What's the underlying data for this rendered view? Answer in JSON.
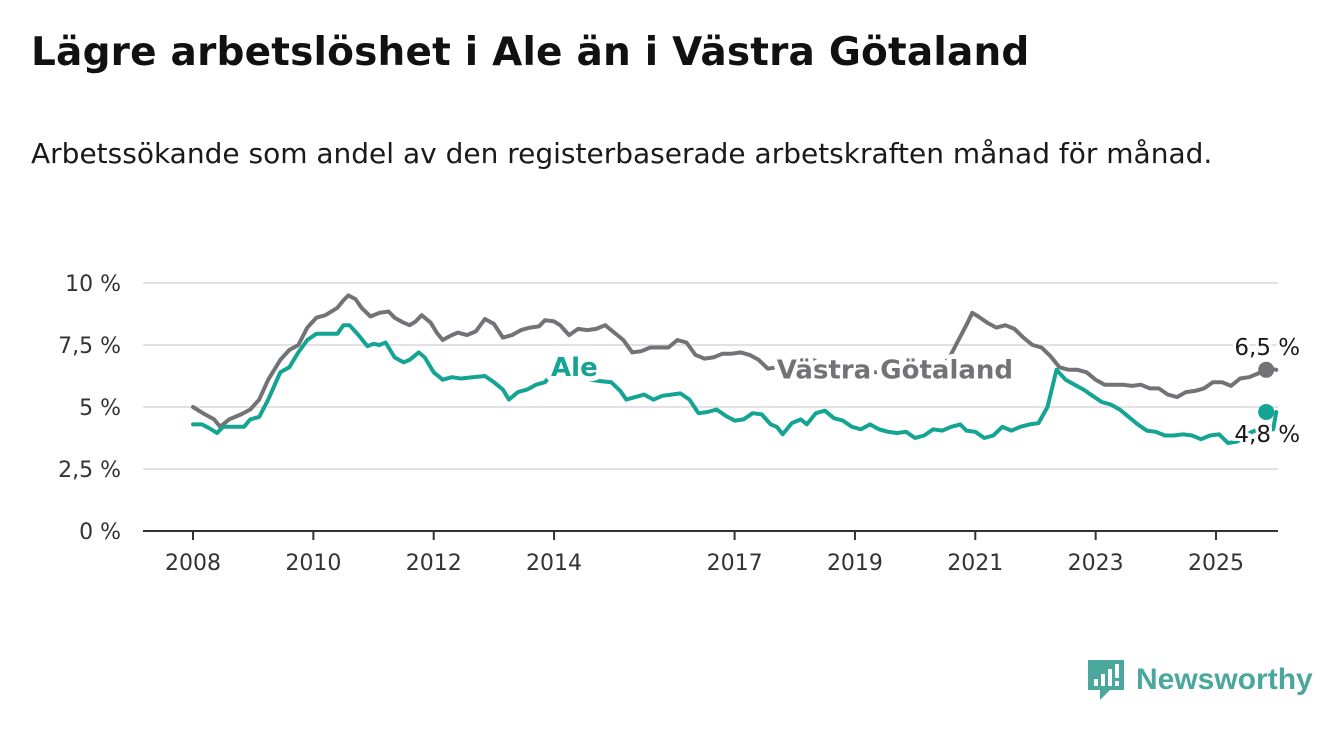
{
  "title": "Lägre arbetslöshet i Ale än i Västra Götaland",
  "subtitle": "Arbetssökande som andel av den registerbaserade arbetskraften månad för månad.",
  "brand": {
    "name": "Newsworthy",
    "icon": "newsworthy-logo-icon",
    "color": "#4aa79e"
  },
  "chart_data": {
    "type": "line",
    "title": "Lägre arbetslöshet i Ale än i Västra Götaland",
    "subtitle": "Arbetssökande som andel av den registerbaserade arbetskraften månad för månad.",
    "xlabel": "",
    "ylabel": "",
    "ylim": [
      0,
      10
    ],
    "xlim": [
      2007.2,
      2026.0
    ],
    "grid": true,
    "legend": "inline",
    "y_ticks": [
      {
        "value": 0,
        "label": "0 %"
      },
      {
        "value": 2.5,
        "label": "2,5 %"
      },
      {
        "value": 5,
        "label": "5 %"
      },
      {
        "value": 7.5,
        "label": "7,5 %"
      },
      {
        "value": 10,
        "label": "10 %"
      }
    ],
    "x_ticks": [
      {
        "value": 2008,
        "label": "2008"
      },
      {
        "value": 2010,
        "label": "2010"
      },
      {
        "value": 2012,
        "label": "2012"
      },
      {
        "value": 2014,
        "label": "2014"
      },
      {
        "value": 2017,
        "label": "2017"
      },
      {
        "value": 2019,
        "label": "2019"
      },
      {
        "value": 2021,
        "label": "2021"
      },
      {
        "value": 2023,
        "label": "2023"
      },
      {
        "value": 2025,
        "label": "2025"
      }
    ],
    "series": [
      {
        "name": "Västra Götaland",
        "color": "#737277",
        "end_label": "6,5 %",
        "points": [
          [
            2008.0,
            5.0
          ],
          [
            2008.2,
            4.7
          ],
          [
            2008.35,
            4.5
          ],
          [
            2008.45,
            4.2
          ],
          [
            2008.6,
            4.5
          ],
          [
            2008.8,
            4.7
          ],
          [
            2008.95,
            4.9
          ],
          [
            2009.1,
            5.3
          ],
          [
            2009.25,
            6.1
          ],
          [
            2009.45,
            6.9
          ],
          [
            2009.6,
            7.3
          ],
          [
            2009.75,
            7.5
          ],
          [
            2009.9,
            8.2
          ],
          [
            2010.05,
            8.6
          ],
          [
            2010.2,
            8.7
          ],
          [
            2010.4,
            9.0
          ],
          [
            2010.5,
            9.3
          ],
          [
            2010.58,
            9.5
          ],
          [
            2010.7,
            9.35
          ],
          [
            2010.8,
            9.0
          ],
          [
            2010.95,
            8.65
          ],
          [
            2011.1,
            8.8
          ],
          [
            2011.25,
            8.85
          ],
          [
            2011.35,
            8.6
          ],
          [
            2011.5,
            8.4
          ],
          [
            2011.6,
            8.3
          ],
          [
            2011.7,
            8.45
          ],
          [
            2011.8,
            8.7
          ],
          [
            2011.95,
            8.4
          ],
          [
            2012.05,
            8.0
          ],
          [
            2012.15,
            7.7
          ],
          [
            2012.3,
            7.9
          ],
          [
            2012.4,
            8.0
          ],
          [
            2012.55,
            7.9
          ],
          [
            2012.7,
            8.05
          ],
          [
            2012.85,
            8.55
          ],
          [
            2013.0,
            8.35
          ],
          [
            2013.15,
            7.8
          ],
          [
            2013.3,
            7.9
          ],
          [
            2013.45,
            8.1
          ],
          [
            2013.6,
            8.2
          ],
          [
            2013.75,
            8.25
          ],
          [
            2013.85,
            8.5
          ],
          [
            2014.0,
            8.45
          ],
          [
            2014.1,
            8.3
          ],
          [
            2014.25,
            7.9
          ],
          [
            2014.4,
            8.15
          ],
          [
            2014.55,
            8.1
          ],
          [
            2014.7,
            8.15
          ],
          [
            2014.85,
            8.3
          ],
          [
            2015.0,
            8.0
          ],
          [
            2015.15,
            7.7
          ],
          [
            2015.3,
            7.2
          ],
          [
            2015.45,
            7.25
          ],
          [
            2015.6,
            7.4
          ],
          [
            2015.75,
            7.4
          ],
          [
            2015.9,
            7.4
          ],
          [
            2016.05,
            7.7
          ],
          [
            2016.2,
            7.6
          ],
          [
            2016.35,
            7.1
          ],
          [
            2016.5,
            6.95
          ],
          [
            2016.65,
            7.0
          ],
          [
            2016.8,
            7.15
          ],
          [
            2016.95,
            7.15
          ],
          [
            2017.1,
            7.2
          ],
          [
            2017.25,
            7.1
          ],
          [
            2017.4,
            6.9
          ],
          [
            2017.55,
            6.55
          ],
          [
            2017.7,
            6.6
          ],
          [
            2017.85,
            6.7
          ],
          [
            2018.0,
            6.75
          ],
          [
            2018.15,
            6.85
          ],
          [
            2018.3,
            6.9
          ],
          [
            2018.45,
            6.75
          ],
          [
            2018.6,
            6.6
          ],
          [
            2018.75,
            6.3
          ],
          [
            2018.9,
            6.3
          ],
          [
            2019.05,
            6.35
          ],
          [
            2019.2,
            6.4
          ],
          [
            2019.35,
            6.4
          ],
          [
            2019.5,
            6.45
          ],
          [
            2019.65,
            6.5
          ],
          [
            2019.8,
            6.55
          ],
          [
            2019.95,
            6.6
          ],
          [
            2020.1,
            6.6
          ],
          [
            2020.25,
            6.55
          ],
          [
            2020.4,
            6.7
          ],
          [
            2020.55,
            6.9
          ],
          [
            2020.7,
            7.6
          ],
          [
            2020.85,
            8.3
          ],
          [
            2020.95,
            8.8
          ],
          [
            2021.05,
            8.65
          ],
          [
            2021.2,
            8.4
          ],
          [
            2021.35,
            8.2
          ],
          [
            2021.5,
            8.3
          ],
          [
            2021.65,
            8.15
          ],
          [
            2021.8,
            7.8
          ],
          [
            2021.95,
            7.5
          ],
          [
            2022.1,
            7.4
          ],
          [
            2022.25,
            7.05
          ],
          [
            2022.4,
            6.6
          ],
          [
            2022.55,
            6.5
          ],
          [
            2022.7,
            6.5
          ],
          [
            2022.85,
            6.4
          ],
          [
            2023.0,
            6.1
          ],
          [
            2023.15,
            5.9
          ],
          [
            2023.3,
            5.9
          ],
          [
            2023.45,
            5.9
          ],
          [
            2023.6,
            5.85
          ],
          [
            2023.75,
            5.9
          ],
          [
            2023.9,
            5.75
          ],
          [
            2024.05,
            5.75
          ],
          [
            2024.2,
            5.5
          ],
          [
            2024.35,
            5.4
          ],
          [
            2024.5,
            5.6
          ],
          [
            2024.65,
            5.65
          ],
          [
            2024.8,
            5.75
          ],
          [
            2024.95,
            6.0
          ],
          [
            2025.1,
            6.0
          ],
          [
            2025.25,
            5.85
          ],
          [
            2025.4,
            6.15
          ],
          [
            2025.55,
            6.2
          ],
          [
            2025.7,
            6.35
          ],
          [
            2025.8,
            6.5
          ],
          [
            2025.9,
            6.55
          ],
          [
            2026.0,
            6.5
          ]
        ]
      },
      {
        "name": "Ale",
        "color": "#14a493",
        "end_label": "4,8 %",
        "points": [
          [
            2008.0,
            4.3
          ],
          [
            2008.15,
            4.3
          ],
          [
            2008.3,
            4.1
          ],
          [
            2008.4,
            3.95
          ],
          [
            2008.5,
            4.2
          ],
          [
            2008.7,
            4.2
          ],
          [
            2008.85,
            4.2
          ],
          [
            2008.95,
            4.5
          ],
          [
            2009.1,
            4.6
          ],
          [
            2009.25,
            5.3
          ],
          [
            2009.45,
            6.4
          ],
          [
            2009.6,
            6.6
          ],
          [
            2009.75,
            7.2
          ],
          [
            2009.9,
            7.7
          ],
          [
            2010.05,
            7.95
          ],
          [
            2010.25,
            7.95
          ],
          [
            2010.4,
            7.95
          ],
          [
            2010.5,
            8.3
          ],
          [
            2010.6,
            8.3
          ],
          [
            2010.75,
            7.9
          ],
          [
            2010.9,
            7.45
          ],
          [
            2011.0,
            7.55
          ],
          [
            2011.1,
            7.5
          ],
          [
            2011.2,
            7.6
          ],
          [
            2011.35,
            7.0
          ],
          [
            2011.5,
            6.8
          ],
          [
            2011.6,
            6.9
          ],
          [
            2011.75,
            7.2
          ],
          [
            2011.85,
            7.0
          ],
          [
            2012.0,
            6.4
          ],
          [
            2012.15,
            6.1
          ],
          [
            2012.3,
            6.2
          ],
          [
            2012.45,
            6.15
          ],
          [
            2012.65,
            6.2
          ],
          [
            2012.85,
            6.25
          ],
          [
            2013.0,
            6.0
          ],
          [
            2013.15,
            5.7
          ],
          [
            2013.25,
            5.3
          ],
          [
            2013.4,
            5.6
          ],
          [
            2013.55,
            5.7
          ],
          [
            2013.7,
            5.9
          ],
          [
            2013.85,
            6.0
          ],
          [
            2013.95,
            6.3
          ],
          [
            2014.1,
            6.3
          ],
          [
            2014.3,
            6.35
          ],
          [
            2014.45,
            6.4
          ],
          [
            2014.6,
            6.1
          ],
          [
            2014.75,
            6.05
          ],
          [
            2014.95,
            6.0
          ],
          [
            2015.1,
            5.65
          ],
          [
            2015.2,
            5.3
          ],
          [
            2015.35,
            5.4
          ],
          [
            2015.5,
            5.5
          ],
          [
            2015.65,
            5.3
          ],
          [
            2015.8,
            5.45
          ],
          [
            2015.95,
            5.5
          ],
          [
            2016.1,
            5.55
          ],
          [
            2016.25,
            5.3
          ],
          [
            2016.4,
            4.75
          ],
          [
            2016.55,
            4.8
          ],
          [
            2016.7,
            4.9
          ],
          [
            2016.85,
            4.65
          ],
          [
            2017.0,
            4.45
          ],
          [
            2017.15,
            4.5
          ],
          [
            2017.3,
            4.75
          ],
          [
            2017.45,
            4.7
          ],
          [
            2017.6,
            4.3
          ],
          [
            2017.7,
            4.2
          ],
          [
            2017.8,
            3.9
          ],
          [
            2017.95,
            4.35
          ],
          [
            2018.1,
            4.5
          ],
          [
            2018.2,
            4.3
          ],
          [
            2018.35,
            4.75
          ],
          [
            2018.5,
            4.85
          ],
          [
            2018.65,
            4.55
          ],
          [
            2018.8,
            4.45
          ],
          [
            2018.95,
            4.2
          ],
          [
            2019.1,
            4.1
          ],
          [
            2019.25,
            4.3
          ],
          [
            2019.4,
            4.1
          ],
          [
            2019.55,
            4.0
          ],
          [
            2019.7,
            3.95
          ],
          [
            2019.85,
            4.0
          ],
          [
            2020.0,
            3.75
          ],
          [
            2020.15,
            3.85
          ],
          [
            2020.3,
            4.1
          ],
          [
            2020.45,
            4.05
          ],
          [
            2020.6,
            4.2
          ],
          [
            2020.75,
            4.3
          ],
          [
            2020.85,
            4.05
          ],
          [
            2021.0,
            4.0
          ],
          [
            2021.15,
            3.75
          ],
          [
            2021.3,
            3.85
          ],
          [
            2021.45,
            4.2
          ],
          [
            2021.6,
            4.05
          ],
          [
            2021.75,
            4.2
          ],
          [
            2021.9,
            4.3
          ],
          [
            2022.05,
            4.35
          ],
          [
            2022.2,
            5.0
          ],
          [
            2022.35,
            6.5
          ],
          [
            2022.5,
            6.1
          ],
          [
            2022.65,
            5.9
          ],
          [
            2022.8,
            5.7
          ],
          [
            2022.95,
            5.45
          ],
          [
            2023.1,
            5.2
          ],
          [
            2023.25,
            5.1
          ],
          [
            2023.4,
            4.9
          ],
          [
            2023.55,
            4.6
          ],
          [
            2023.7,
            4.3
          ],
          [
            2023.85,
            4.05
          ],
          [
            2024.0,
            4.0
          ],
          [
            2024.15,
            3.85
          ],
          [
            2024.3,
            3.85
          ],
          [
            2024.45,
            3.9
          ],
          [
            2024.6,
            3.85
          ],
          [
            2024.75,
            3.7
          ],
          [
            2024.9,
            3.85
          ],
          [
            2025.05,
            3.9
          ],
          [
            2025.2,
            3.55
          ],
          [
            2025.35,
            3.6
          ],
          [
            2025.5,
            3.9
          ],
          [
            2025.65,
            4.05
          ],
          [
            2025.8,
            4.05
          ],
          [
            2025.95,
            4.1
          ],
          [
            2026.0,
            4.8
          ]
        ]
      }
    ]
  }
}
